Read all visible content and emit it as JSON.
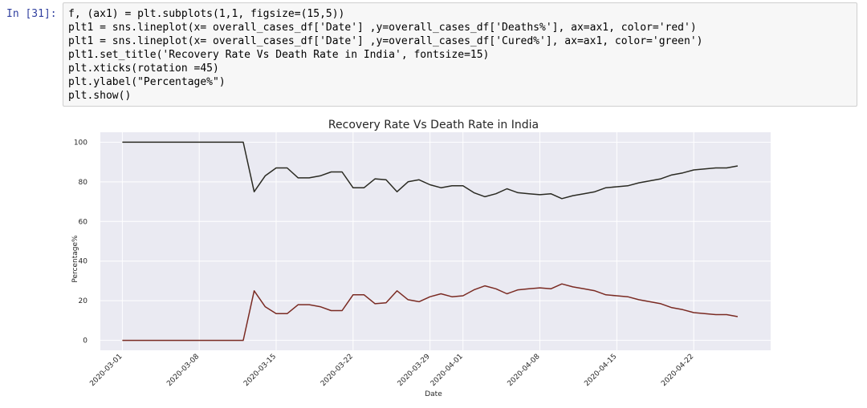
{
  "cell": {
    "prompt": "In [31]:",
    "code_lines": [
      "f, (ax1) = plt.subplots(1,1, figsize=(15,5))",
      "plt1 = sns.lineplot(x= overall_cases_df['Date'] ,y=overall_cases_df['Deaths%'], ax=ax1, color='red')",
      "plt1 = sns.lineplot(x= overall_cases_df['Date'] ,y=overall_cases_df['Cured%'], ax=ax1, color='green')",
      "plt1.set_title('Recovery Rate Vs Death Rate in India', fontsize=15)",
      "plt.xticks(rotation =45)",
      "plt.ylabel(\"Percentage%\")",
      "plt.show()"
    ]
  },
  "colors": {
    "plot_background": "#eaeaf2",
    "grid": "#ffffff",
    "cured_line": "#2a2a22",
    "deaths_line": "#7a2a22",
    "text": "#262626"
  },
  "chart_data": {
    "type": "line",
    "title": "Recovery Rate Vs Death Rate in India",
    "xlabel": "Date",
    "ylabel": "Percentage%",
    "xlim": [
      "2020-02-28",
      "2020-04-29"
    ],
    "ylim": [
      -5,
      105
    ],
    "xticks": [
      "2020-03-01",
      "2020-03-08",
      "2020-03-15",
      "2020-03-22",
      "2020-03-29",
      "2020-04-01",
      "2020-04-08",
      "2020-04-15",
      "2020-04-22"
    ],
    "yticks": [
      0,
      20,
      40,
      60,
      80,
      100
    ],
    "grid": true,
    "x": [
      "2020-03-01",
      "2020-03-02",
      "2020-03-03",
      "2020-03-04",
      "2020-03-05",
      "2020-03-06",
      "2020-03-07",
      "2020-03-08",
      "2020-03-09",
      "2020-03-10",
      "2020-03-11",
      "2020-03-12",
      "2020-03-13",
      "2020-03-14",
      "2020-03-15",
      "2020-03-16",
      "2020-03-17",
      "2020-03-18",
      "2020-03-19",
      "2020-03-20",
      "2020-03-21",
      "2020-03-22",
      "2020-03-23",
      "2020-03-24",
      "2020-03-25",
      "2020-03-26",
      "2020-03-27",
      "2020-03-28",
      "2020-03-29",
      "2020-03-30",
      "2020-03-31",
      "2020-04-01",
      "2020-04-02",
      "2020-04-03",
      "2020-04-04",
      "2020-04-05",
      "2020-04-06",
      "2020-04-07",
      "2020-04-08",
      "2020-04-09",
      "2020-04-10",
      "2020-04-11",
      "2020-04-12",
      "2020-04-13",
      "2020-04-14",
      "2020-04-15",
      "2020-04-16",
      "2020-04-17",
      "2020-04-18",
      "2020-04-19",
      "2020-04-20",
      "2020-04-21",
      "2020-04-22",
      "2020-04-23",
      "2020-04-24",
      "2020-04-25",
      "2020-04-26"
    ],
    "series": [
      {
        "name": "Cured%",
        "color": "#2a2a22",
        "values": [
          100,
          100,
          100,
          100,
          100,
          100,
          100,
          100,
          100,
          100,
          100,
          100,
          75,
          83,
          87,
          87,
          82,
          82,
          83,
          85,
          85,
          77,
          77,
          81.5,
          81,
          75,
          80,
          81,
          78.5,
          77,
          78,
          78,
          74.5,
          72.5,
          74,
          76.5,
          74.5,
          74,
          73.5,
          74,
          71.5,
          73,
          74,
          75,
          77,
          77.5,
          78,
          79.5,
          80.5,
          81.5,
          83.5,
          84.5,
          86,
          86.5,
          87,
          87,
          88
        ]
      },
      {
        "name": "Deaths%",
        "color": "#7a2a22",
        "values": [
          0,
          0,
          0,
          0,
          0,
          0,
          0,
          0,
          0,
          0,
          0,
          0,
          25,
          17,
          13.5,
          13.5,
          18,
          18,
          17,
          15,
          15,
          23,
          23,
          18.5,
          19,
          25,
          20.5,
          19.5,
          22,
          23.5,
          22,
          22.5,
          25.5,
          27.5,
          26,
          23.5,
          25.5,
          26,
          26.5,
          26,
          28.5,
          27,
          26,
          25,
          23,
          22.5,
          22,
          20.5,
          19.5,
          18.5,
          16.5,
          15.5,
          14,
          13.5,
          13,
          13,
          12
        ]
      }
    ]
  }
}
